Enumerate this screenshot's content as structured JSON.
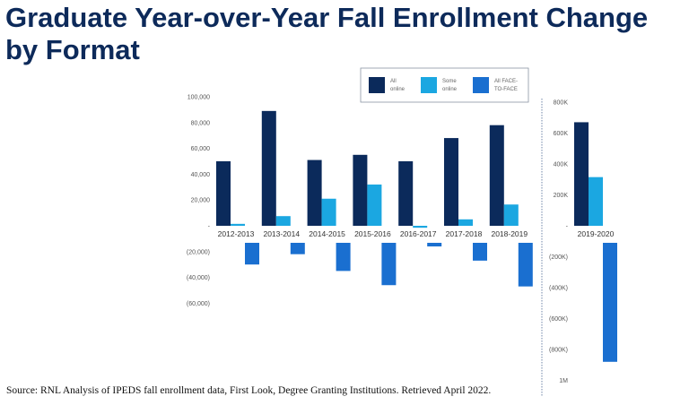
{
  "title": "Graduate Year-over-Year Fall Enrollment Change by Format",
  "source": "Source: RNL Analysis of IPEDS fall enrollment data, First Look,  Degree Granting Institutions. Retrieved April 2022.",
  "colors": {
    "all_online": "#0b2a5b",
    "some_online": "#1ba7e1",
    "face_to_face": "#1a6fd0",
    "title": "#0d2a5a"
  },
  "chart_data": [
    {
      "type": "bar",
      "categories": [
        "2012-2013",
        "2013-2014",
        "2014-2015",
        "2015-2016",
        "2016-2017",
        "2017-2018",
        "2018-2019"
      ],
      "series": [
        {
          "name": "All online",
          "legend_lines": [
            "All",
            "online"
          ],
          "values": [
            50000,
            89000,
            51000,
            55000,
            50000,
            68000,
            78000
          ]
        },
        {
          "name": "Some online",
          "legend_lines": [
            "Some",
            "online"
          ],
          "values": [
            1500,
            7500,
            21000,
            32000,
            -1500,
            5000,
            16500
          ]
        },
        {
          "name": "All FACE-TO-FACE",
          "legend_lines": [
            "All FACE-",
            "TO-FACE"
          ],
          "values": [
            -30000,
            -22000,
            -35000,
            -46000,
            -16000,
            -27000,
            -47000
          ]
        }
      ],
      "ylim": [
        -60000,
        100000
      ],
      "yticks": [
        {
          "value": 100000,
          "label": "100,000"
        },
        {
          "value": 80000,
          "label": "80,000"
        },
        {
          "value": 60000,
          "label": "60,000"
        },
        {
          "value": 40000,
          "label": "40,000"
        },
        {
          "value": 20000,
          "label": "20,000"
        },
        {
          "value": 0,
          "label": "-"
        },
        {
          "value": -20000,
          "label": "(20,000)"
        },
        {
          "value": -40000,
          "label": "(40,000)"
        },
        {
          "value": -60000,
          "label": "(60,000)"
        }
      ],
      "grid": false,
      "legend": "top"
    },
    {
      "type": "bar",
      "categories": [
        "2019-2020"
      ],
      "series": [
        {
          "name": "All online",
          "values": [
            670000
          ]
        },
        {
          "name": "Some online",
          "values": [
            315000
          ]
        },
        {
          "name": "All FACE-TO-FACE",
          "values": [
            -880000
          ]
        }
      ],
      "ylim": [
        -1000000,
        800000
      ],
      "yticks": [
        {
          "value": 800000,
          "label": "800K"
        },
        {
          "value": 600000,
          "label": "600K"
        },
        {
          "value": 400000,
          "label": "400K"
        },
        {
          "value": 200000,
          "label": "200K"
        },
        {
          "value": 0,
          "label": "-"
        },
        {
          "value": -200000,
          "label": "(200K)"
        },
        {
          "value": -400000,
          "label": "(400K)"
        },
        {
          "value": -600000,
          "label": "(600K)"
        },
        {
          "value": -800000,
          "label": "(800K)"
        },
        {
          "value": -1000000,
          "label": "1M"
        }
      ],
      "grid": false
    }
  ]
}
